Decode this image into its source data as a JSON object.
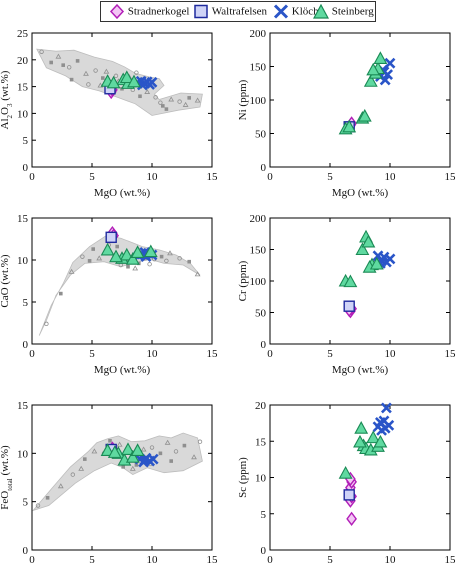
{
  "legend": {
    "items": [
      {
        "label": "Stradnerkogel",
        "marker": "diamond",
        "color": "#b21fb8",
        "fill": "#f3c6f5"
      },
      {
        "label": "Waltrafelsen",
        "marker": "square",
        "color": "#1f2a9e",
        "fill": "#cfd3f7"
      },
      {
        "label": "Klöch",
        "marker": "x",
        "color": "#2a55c8",
        "fill": "#2a55c8"
      },
      {
        "label": "Steinberg",
        "marker": "triangle",
        "color": "#1a8a55",
        "fill": "#5fd9a0"
      }
    ]
  },
  "colors": {
    "field": "#d9d9d9",
    "background_points": "#8f8f8f"
  },
  "chart_data": [
    {
      "type": "scatter",
      "panel": "top-left",
      "xlabel": "MgO (wt.%)",
      "ylabel_main": "Al",
      "ylabel_sub1": "2",
      "ylabel_mid": "O",
      "ylabel_sub2": "3",
      "ylabel_tail": " (wt.%)",
      "xlim": [
        0,
        15
      ],
      "ylim": [
        0,
        25
      ],
      "xticks": [
        "0",
        "5",
        "10",
        "15"
      ],
      "yticks": [
        "0",
        "5",
        "10",
        "15",
        "20",
        "25"
      ],
      "field": true,
      "series": [
        {
          "marker": "diamond",
          "points": [
            [
              6.6,
              14.0
            ],
            [
              6.7,
              14.4
            ],
            [
              6.6,
              14.8
            ]
          ]
        },
        {
          "marker": "square",
          "points": [
            [
              6.5,
              14.6
            ]
          ]
        },
        {
          "marker": "x",
          "points": [
            [
              8.8,
              15.8
            ],
            [
              9.1,
              16.0
            ],
            [
              9.4,
              15.6
            ],
            [
              9.6,
              15.9
            ],
            [
              9.8,
              15.4
            ],
            [
              10.0,
              15.8
            ],
            [
              9.2,
              15.3
            ]
          ]
        },
        {
          "marker": "triangle",
          "points": [
            [
              6.3,
              16.0
            ],
            [
              7.6,
              16.3
            ],
            [
              8.0,
              15.6
            ],
            [
              7.9,
              16.7
            ],
            [
              8.5,
              15.9
            ],
            [
              6.8,
              15.7
            ]
          ]
        }
      ]
    },
    {
      "type": "scatter",
      "panel": "top-right",
      "xlabel": "MgO (wt.%)",
      "ylabel": "Ni (ppm)",
      "xlim": [
        0,
        15
      ],
      "ylim": [
        0,
        200
      ],
      "xticks": [
        "0",
        "5",
        "10",
        "15"
      ],
      "yticks": [
        "0",
        "50",
        "100",
        "150",
        "200"
      ],
      "field": false,
      "series": [
        {
          "marker": "diamond",
          "points": [
            [
              6.7,
              62
            ],
            [
              6.8,
              65
            ]
          ]
        },
        {
          "marker": "square",
          "points": [
            [
              6.6,
              60
            ]
          ]
        },
        {
          "marker": "x",
          "points": [
            [
              8.9,
              140
            ],
            [
              9.2,
              135
            ],
            [
              9.4,
              145
            ],
            [
              9.6,
              130
            ],
            [
              9.8,
              138
            ],
            [
              10.0,
              155
            ],
            [
              9.5,
              142
            ]
          ]
        },
        {
          "marker": "triangle",
          "points": [
            [
              6.3,
              57
            ],
            [
              6.6,
              60
            ],
            [
              7.7,
              73
            ],
            [
              7.9,
              76
            ],
            [
              8.4,
              128
            ],
            [
              8.8,
              140
            ],
            [
              9.0,
              147
            ],
            [
              9.2,
              162
            ],
            [
              8.6,
              145
            ]
          ]
        }
      ]
    },
    {
      "type": "scatter",
      "panel": "middle-left",
      "xlabel": "MgO (wt.%)",
      "ylabel": "CaO (wt.%)",
      "xlim": [
        0,
        15
      ],
      "ylim": [
        0,
        15
      ],
      "xticks": [
        "0",
        "5",
        "10",
        "15"
      ],
      "yticks": [
        "0",
        "5",
        "10",
        "15"
      ],
      "field": true,
      "series": [
        {
          "marker": "diamond",
          "points": [
            [
              6.7,
              13.2
            ],
            [
              6.8,
              12.9
            ]
          ]
        },
        {
          "marker": "square",
          "points": [
            [
              6.6,
              12.7
            ]
          ]
        },
        {
          "marker": "x",
          "points": [
            [
              8.9,
              10.5
            ],
            [
              9.2,
              10.7
            ],
            [
              9.5,
              10.4
            ],
            [
              9.7,
              10.8
            ],
            [
              10.0,
              10.6
            ],
            [
              9.4,
              10.9
            ]
          ]
        },
        {
          "marker": "triangle",
          "points": [
            [
              6.3,
              11.2
            ],
            [
              7.5,
              10.2
            ],
            [
              7.9,
              10.6
            ],
            [
              8.4,
              10.1
            ],
            [
              8.8,
              10.9
            ],
            [
              7.0,
              10.4
            ],
            [
              9.9,
              11.0
            ]
          ]
        }
      ]
    },
    {
      "type": "scatter",
      "panel": "middle-right",
      "xlabel": "MgO (wt.%)",
      "ylabel": "Cr (ppm)",
      "xlim": [
        0,
        15
      ],
      "ylim": [
        0,
        200
      ],
      "xticks": [
        "0",
        "5",
        "10",
        "15"
      ],
      "yticks": [
        "0",
        "50",
        "100",
        "150",
        "200"
      ],
      "field": false,
      "series": [
        {
          "marker": "diamond",
          "points": [
            [
              6.7,
              52
            ],
            [
              6.8,
              56
            ],
            [
              6.6,
              54
            ]
          ]
        },
        {
          "marker": "square",
          "points": [
            [
              6.6,
              60
            ]
          ]
        },
        {
          "marker": "x",
          "points": [
            [
              9.0,
              140
            ],
            [
              9.3,
              132
            ],
            [
              9.5,
              138
            ],
            [
              9.7,
              130
            ],
            [
              10.0,
              135
            ],
            [
              9.2,
              128
            ]
          ]
        },
        {
          "marker": "triangle",
          "points": [
            [
              6.3,
              100
            ],
            [
              6.7,
              99
            ],
            [
              7.7,
              150
            ],
            [
              8.0,
              170
            ],
            [
              8.2,
              162
            ],
            [
              8.5,
              126
            ],
            [
              8.3,
              122
            ],
            [
              8.9,
              127
            ]
          ]
        }
      ]
    },
    {
      "type": "scatter",
      "panel": "bottom-left",
      "xlabel": "MgO (wt.%)",
      "ylabel_main": "FeO",
      "ylabel_sub1": "total",
      "ylabel_tail": " (wt.%)",
      "xlim": [
        0,
        15
      ],
      "ylim": [
        0,
        15
      ],
      "xticks": [
        "0",
        "5",
        "10",
        "15"
      ],
      "yticks": [
        "0",
        "5",
        "10",
        "15"
      ],
      "field": true,
      "series": [
        {
          "marker": "diamond",
          "points": [
            [
              6.7,
              10.5
            ],
            [
              6.8,
              10.2
            ]
          ]
        },
        {
          "marker": "square",
          "points": [
            [
              6.6,
              10.4
            ]
          ]
        },
        {
          "marker": "x",
          "points": [
            [
              9.0,
              9.4
            ],
            [
              9.3,
              9.1
            ],
            [
              9.5,
              9.5
            ],
            [
              9.8,
              9.2
            ],
            [
              10.1,
              9.4
            ],
            [
              9.4,
              9.3
            ]
          ]
        },
        {
          "marker": "triangle",
          "points": [
            [
              6.3,
              10.3
            ],
            [
              7.2,
              10.0
            ],
            [
              7.7,
              9.3
            ],
            [
              8.0,
              10.4
            ],
            [
              8.4,
              9.6
            ],
            [
              8.8,
              10.3
            ],
            [
              6.9,
              10.1
            ]
          ]
        }
      ]
    },
    {
      "type": "scatter",
      "panel": "bottom-right",
      "xlabel": "MgO (wt.%)",
      "ylabel": "Sc (ppm)",
      "xlim": [
        0,
        15
      ],
      "ylim": [
        0,
        20
      ],
      "xticks": [
        "0",
        "5",
        "10",
        "15"
      ],
      "yticks": [
        "0",
        "5",
        "10",
        "15",
        "20"
      ],
      "field": false,
      "series": [
        {
          "marker": "diamond",
          "points": [
            [
              6.8,
              4.3
            ],
            [
              6.7,
              6.8
            ],
            [
              6.8,
              7.4
            ],
            [
              6.6,
              8.0
            ],
            [
              6.7,
              8.6
            ],
            [
              6.8,
              9.4
            ],
            [
              6.7,
              9.8
            ]
          ]
        },
        {
          "marker": "square",
          "points": [
            [
              6.6,
              7.6
            ]
          ]
        },
        {
          "marker": "x",
          "points": [
            [
              9.0,
              17.0
            ],
            [
              9.3,
              16.5
            ],
            [
              9.5,
              17.8
            ],
            [
              9.7,
              19.6
            ],
            [
              9.9,
              17.2
            ],
            [
              9.2,
              17.6
            ],
            [
              9.6,
              16.8
            ]
          ]
        },
        {
          "marker": "triangle",
          "points": [
            [
              6.3,
              10.6
            ],
            [
              7.6,
              16.8
            ],
            [
              7.8,
              14.4
            ],
            [
              8.0,
              14.0
            ],
            [
              8.4,
              13.8
            ],
            [
              8.6,
              15.5
            ],
            [
              9.0,
              14.3
            ],
            [
              9.2,
              14.9
            ],
            [
              7.5,
              14.9
            ]
          ]
        }
      ]
    }
  ]
}
